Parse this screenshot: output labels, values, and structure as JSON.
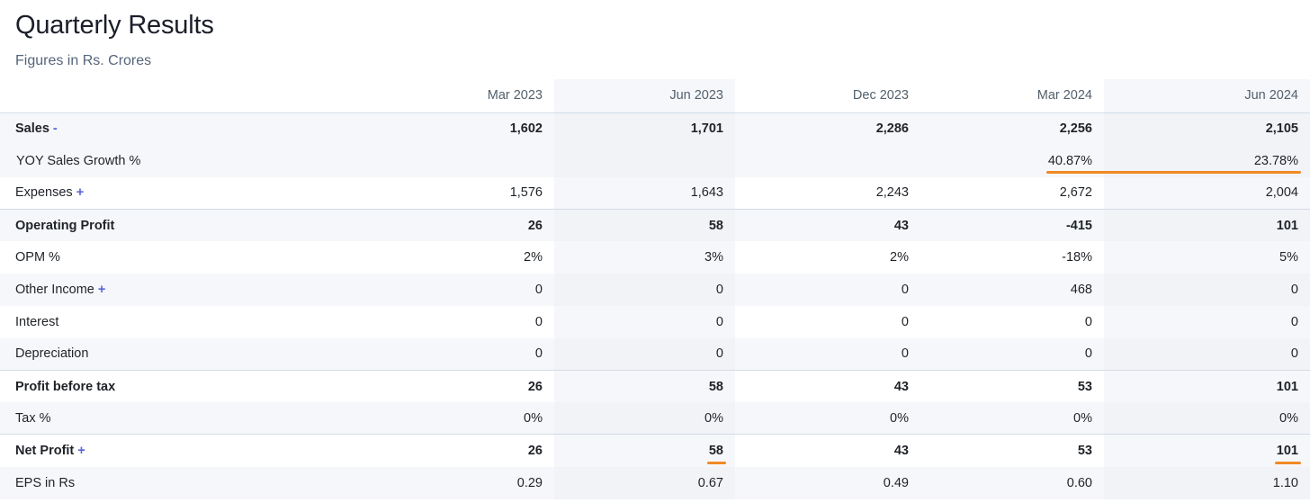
{
  "header": {
    "title": "Quarterly Results",
    "subtitle": "Figures in Rs. Crores"
  },
  "colors": {
    "highlight": "#f08a24",
    "accent": "#5a64d6",
    "shade": "#f6f7fa"
  },
  "table": {
    "columns": [
      "Mar 2023",
      "Jun 2023",
      "Dec 2023",
      "Mar 2024",
      "Jun 2024"
    ],
    "rows": [
      {
        "label": "Sales",
        "toggle": "-",
        "values": [
          "1,602",
          "1,701",
          "2,286",
          "2,256",
          "2,105"
        ]
      },
      {
        "label": "YOY Sales Growth %",
        "toggle": "",
        "values": [
          "",
          "",
          "",
          "40.87%",
          "23.78%"
        ]
      },
      {
        "label": "Expenses",
        "toggle": "+",
        "values": [
          "1,576",
          "1,643",
          "2,243",
          "2,672",
          "2,004"
        ]
      },
      {
        "label": "Operating Profit",
        "toggle": "",
        "values": [
          "26",
          "58",
          "43",
          "-415",
          "101"
        ]
      },
      {
        "label": "OPM %",
        "toggle": "",
        "values": [
          "2%",
          "3%",
          "2%",
          "-18%",
          "5%"
        ]
      },
      {
        "label": "Other Income",
        "toggle": "+",
        "values": [
          "0",
          "0",
          "0",
          "468",
          "0"
        ]
      },
      {
        "label": "Interest",
        "toggle": "",
        "values": [
          "0",
          "0",
          "0",
          "0",
          "0"
        ]
      },
      {
        "label": "Depreciation",
        "toggle": "",
        "values": [
          "0",
          "0",
          "0",
          "0",
          "0"
        ]
      },
      {
        "label": "Profit before tax",
        "toggle": "",
        "values": [
          "26",
          "58",
          "43",
          "53",
          "101"
        ]
      },
      {
        "label": "Tax %",
        "toggle": "",
        "values": [
          "0%",
          "0%",
          "0%",
          "0%",
          "0%"
        ]
      },
      {
        "label": "Net Profit",
        "toggle": "+",
        "values": [
          "26",
          "58",
          "43",
          "53",
          "101"
        ]
      },
      {
        "label": "EPS in Rs",
        "toggle": "",
        "values": [
          "0.29",
          "0.67",
          "0.49",
          "0.60",
          "1.10"
        ]
      }
    ]
  }
}
